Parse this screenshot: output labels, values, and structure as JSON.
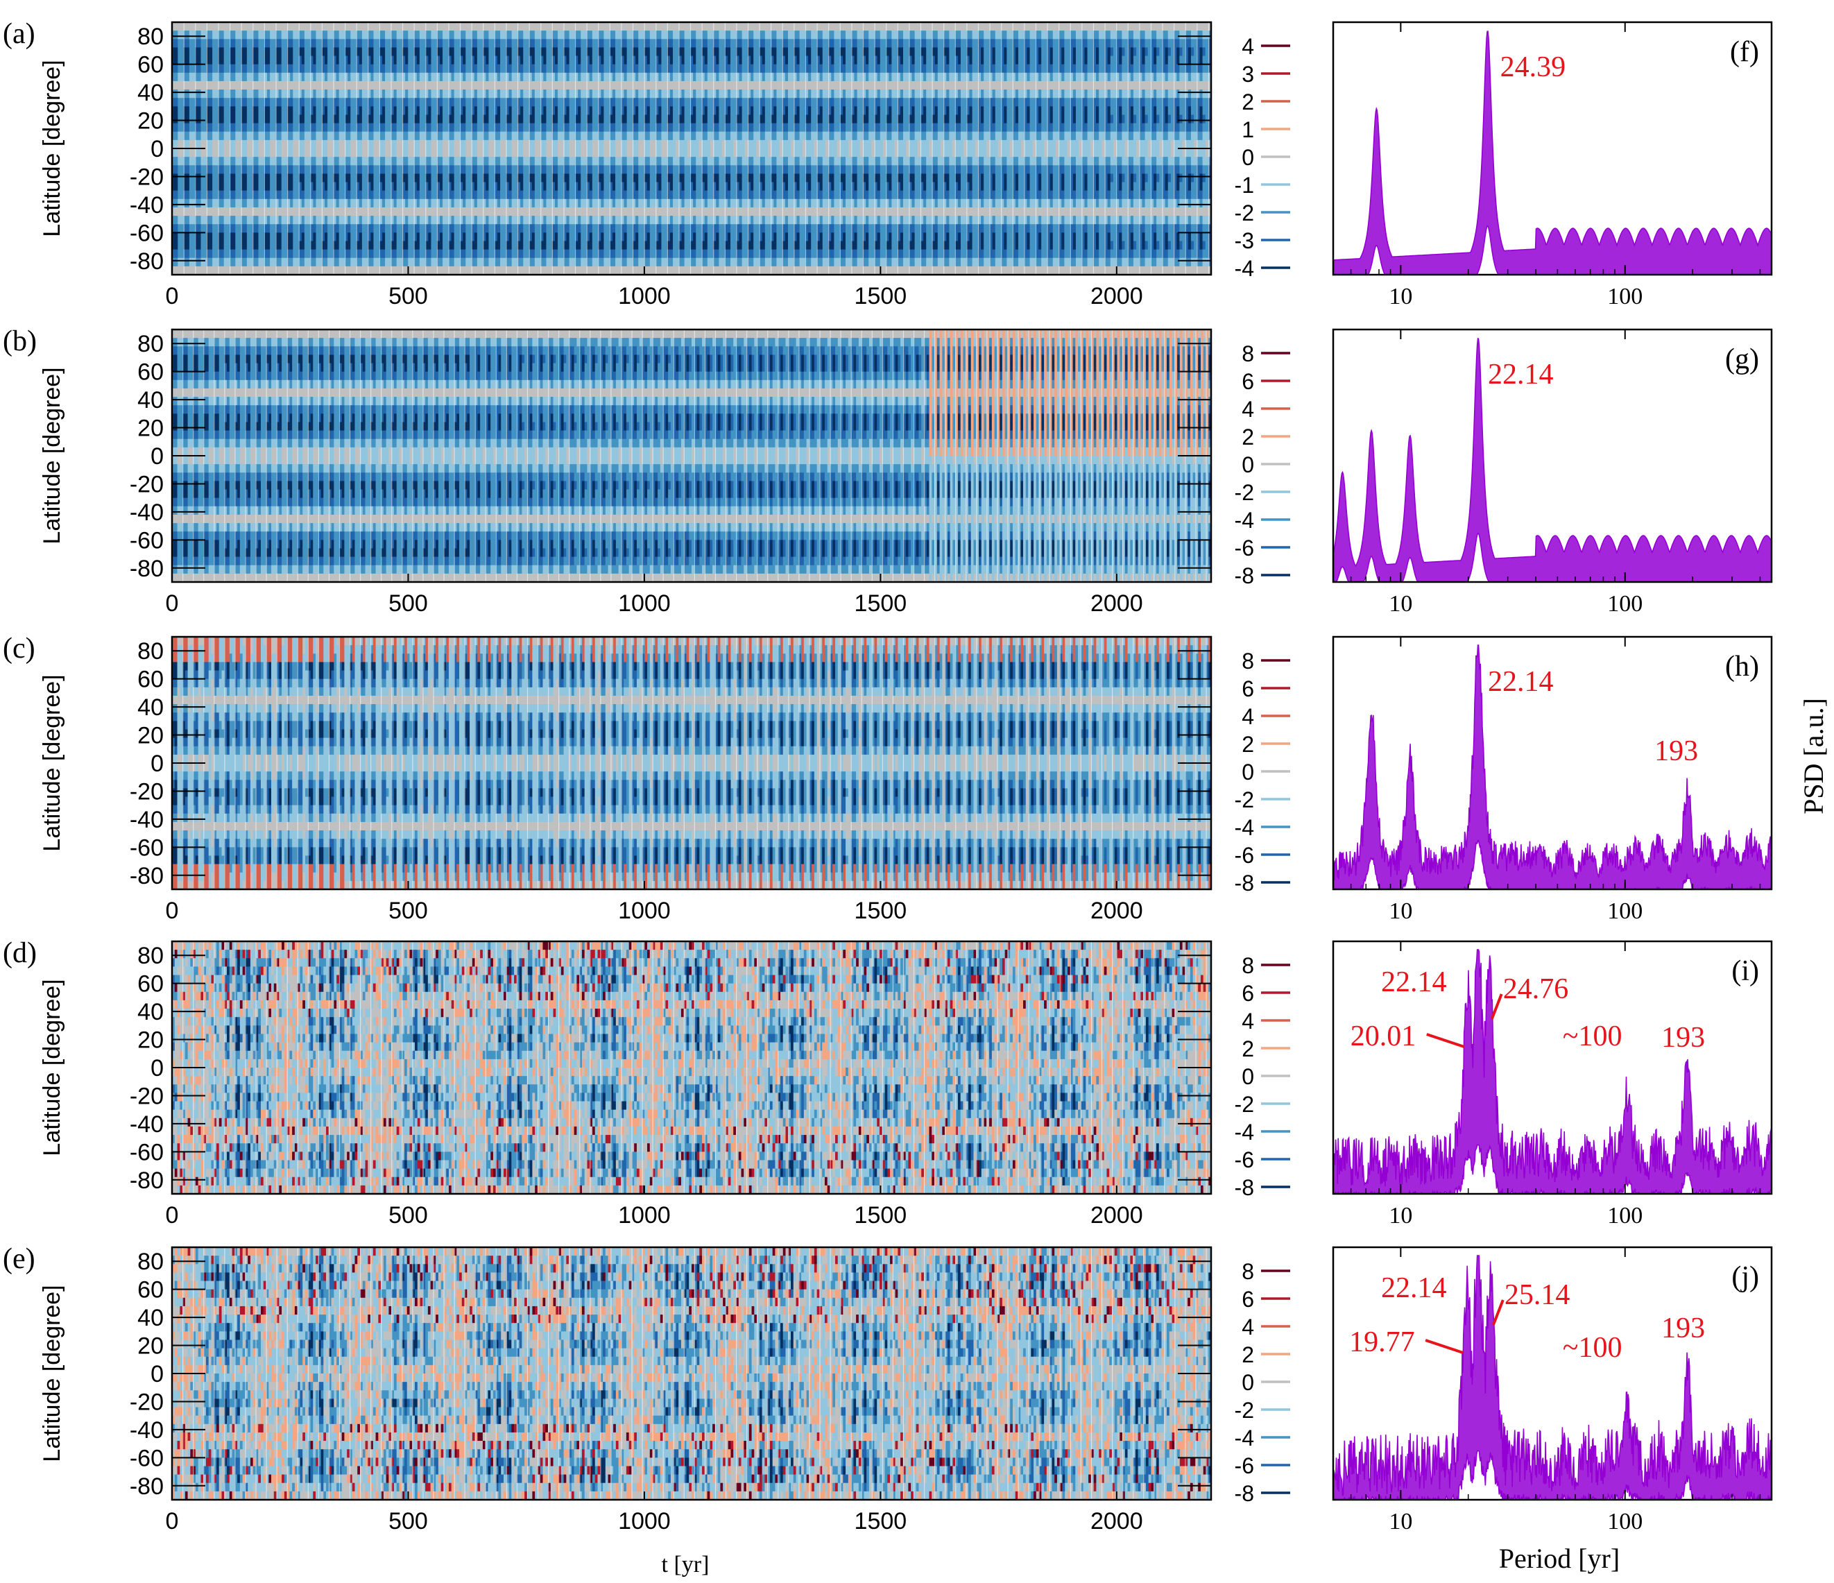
{
  "figure": {
    "x_title": "t [yr]",
    "y_title": "Latitude [degree]",
    "psd_x_title": "Period [yr]",
    "psd_y_title": "PSD [a.u.]"
  },
  "colors": {
    "accent": "#e8141c",
    "psd_line": "#9400d3",
    "contour_palette": [
      "#67001f",
      "#b2182b",
      "#d6604d",
      "#f4a582",
      "#c0c0c0",
      "#92c5de",
      "#4393c3",
      "#2166ac",
      "#053061"
    ]
  },
  "chart_data": [
    {
      "id": "a",
      "panel_label": "(a)",
      "type": "heatmap",
      "x": {
        "label": "",
        "range": [
          0,
          2200
        ],
        "ticks": [
          0,
          500,
          1000,
          1500,
          2000
        ]
      },
      "y": {
        "label": "Latitude [degree]",
        "range": [
          -90,
          90
        ],
        "ticks": [
          80,
          60,
          40,
          20,
          0,
          -20,
          -40,
          -60,
          -80
        ]
      },
      "legend": {
        "placement": "right",
        "levels": [
          "4",
          "3",
          "2",
          "1",
          "0",
          "-1",
          "-2",
          "-3",
          "-4"
        ]
      },
      "pattern": "regular",
      "cycle_years": 24.39
    },
    {
      "id": "b",
      "panel_label": "(b)",
      "type": "heatmap",
      "x": {
        "label": "",
        "range": [
          0,
          2200
        ],
        "ticks": [
          0,
          500,
          1000,
          1500,
          2000
        ]
      },
      "y": {
        "label": "Latitude [degree]",
        "range": [
          -90,
          90
        ],
        "ticks": [
          80,
          60,
          40,
          20,
          0,
          -20,
          -40,
          -60,
          -80
        ]
      },
      "legend": {
        "placement": "right",
        "levels": [
          "8",
          "6",
          "4",
          "2",
          "0",
          "-2",
          "-4",
          "-6",
          "-8"
        ]
      },
      "pattern": "regular",
      "cycle_years": 22.14
    },
    {
      "id": "c",
      "panel_label": "(c)",
      "type": "heatmap",
      "x": {
        "label": "",
        "range": [
          0,
          2200
        ],
        "ticks": [
          0,
          500,
          1000,
          1500,
          2000
        ]
      },
      "y": {
        "label": "Latitude [degree]",
        "range": [
          -90,
          90
        ],
        "ticks": [
          80,
          60,
          40,
          20,
          0,
          -20,
          -40,
          -60,
          -80
        ]
      },
      "legend": {
        "placement": "right",
        "levels": [
          "8",
          "6",
          "4",
          "2",
          "0",
          "-2",
          "-4",
          "-6",
          "-8"
        ]
      },
      "pattern": "modulated",
      "cycle_years": 22.14
    },
    {
      "id": "d",
      "panel_label": "(d)",
      "type": "heatmap",
      "x": {
        "label": "",
        "range": [
          0,
          2200
        ],
        "ticks": [
          0,
          500,
          1000,
          1500,
          2000
        ]
      },
      "y": {
        "label": "Latitude [degree]",
        "range": [
          -90,
          90
        ],
        "ticks": [
          80,
          60,
          40,
          20,
          0,
          -20,
          -40,
          -60,
          -80
        ]
      },
      "legend": {
        "placement": "right",
        "levels": [
          "8",
          "6",
          "4",
          "2",
          "0",
          "-2",
          "-4",
          "-6",
          "-8"
        ]
      },
      "pattern": "irregular",
      "cycle_years": 22.14
    },
    {
      "id": "e",
      "panel_label": "(e)",
      "type": "heatmap",
      "x": {
        "label": "t [yr]",
        "range": [
          0,
          2200
        ],
        "ticks": [
          0,
          500,
          1000,
          1500,
          2000
        ]
      },
      "y": {
        "label": "Latitude [degree]",
        "range": [
          -90,
          90
        ],
        "ticks": [
          80,
          60,
          40,
          20,
          0,
          -20,
          -40,
          -60,
          -80
        ]
      },
      "legend": {
        "placement": "right",
        "levels": [
          "8",
          "6",
          "4",
          "2",
          "0",
          "-2",
          "-4",
          "-6",
          "-8"
        ]
      },
      "pattern": "irregular",
      "cycle_years": 22.14
    },
    {
      "id": "f",
      "panel_label": "(f)",
      "type": "line",
      "xscale": "log",
      "x": {
        "label": "",
        "range": [
          5,
          450
        ],
        "ticks": [
          "10",
          "100"
        ]
      },
      "peaks": [
        {
          "period": 7.8,
          "rel": 0.68
        },
        {
          "period": 24.39,
          "rel": 1.0
        }
      ],
      "annotations": [
        {
          "text": "24.39",
          "period": 24.39
        }
      ],
      "noise": 0.0,
      "tail": "smooth"
    },
    {
      "id": "g",
      "panel_label": "(g)",
      "type": "line",
      "xscale": "log",
      "x": {
        "label": "",
        "range": [
          5,
          450
        ],
        "ticks": [
          "10",
          "100"
        ]
      },
      "peaks": [
        {
          "period": 5.5,
          "rel": 0.45
        },
        {
          "period": 7.4,
          "rel": 0.62
        },
        {
          "period": 11.0,
          "rel": 0.6
        },
        {
          "period": 22.14,
          "rel": 1.0
        }
      ],
      "annotations": [
        {
          "text": "22.14",
          "period": 22.14
        }
      ],
      "noise": 0.0,
      "tail": "smooth"
    },
    {
      "id": "h",
      "panel_label": "(h)",
      "type": "line",
      "xscale": "log",
      "x": {
        "label": "",
        "range": [
          5,
          450
        ],
        "ticks": [
          "10",
          "100"
        ]
      },
      "peaks": [
        {
          "period": 7.4,
          "rel": 0.72
        },
        {
          "period": 11.0,
          "rel": 0.5
        },
        {
          "period": 22.14,
          "rel": 1.0
        },
        {
          "period": 193,
          "rel": 0.5
        }
      ],
      "annotations": [
        {
          "text": "22.14",
          "period": 22.14
        },
        {
          "text": "193",
          "period": 193
        }
      ],
      "noise": 0.35,
      "tail": "wiggly"
    },
    {
      "id": "i",
      "panel_label": "(i)",
      "type": "line",
      "xscale": "log",
      "x": {
        "label": "",
        "range": [
          5,
          450
        ],
        "ticks": [
          "10",
          "100"
        ]
      },
      "peaks": [
        {
          "period": 20.01,
          "rel": 0.8
        },
        {
          "period": 22.14,
          "rel": 1.0
        },
        {
          "period": 24.76,
          "rel": 0.9
        },
        {
          "period": 100,
          "rel": 0.55
        },
        {
          "period": 193,
          "rel": 0.6
        }
      ],
      "annotations": [
        {
          "text": "22.14",
          "period": 22.14
        },
        {
          "text": "24.76",
          "period": 24.76
        },
        {
          "text": "20.01",
          "period": 20.01
        },
        {
          "text": "~100",
          "period": 100
        },
        {
          "text": "193",
          "period": 193
        }
      ],
      "noise": 0.6,
      "tail": "wiggly"
    },
    {
      "id": "j",
      "panel_label": "(j)",
      "type": "line",
      "xscale": "log",
      "x": {
        "label": "Period [yr]",
        "range": [
          5,
          450
        ],
        "ticks": [
          "10",
          "100"
        ]
      },
      "peaks": [
        {
          "period": 19.77,
          "rel": 0.8
        },
        {
          "period": 22.14,
          "rel": 1.0
        },
        {
          "period": 25.14,
          "rel": 0.9
        },
        {
          "period": 100,
          "rel": 0.5
        },
        {
          "period": 193,
          "rel": 0.6
        }
      ],
      "annotations": [
        {
          "text": "22.14",
          "period": 22.14
        },
        {
          "text": "25.14",
          "period": 25.14
        },
        {
          "text": "19.77",
          "period": 19.77
        },
        {
          "text": "~100",
          "period": 100
        },
        {
          "text": "193",
          "period": 193
        }
      ],
      "noise": 0.7,
      "tail": "wiggly"
    }
  ]
}
